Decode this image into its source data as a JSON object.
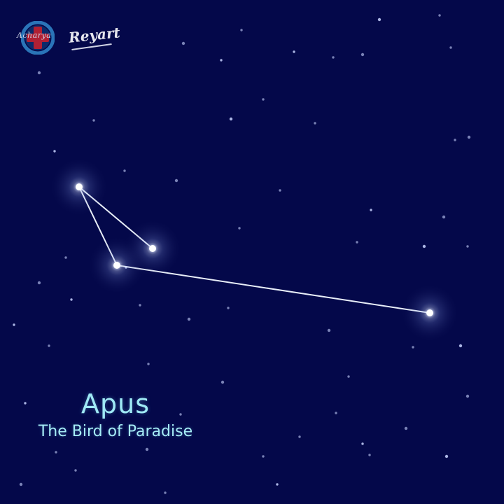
{
  "constellation": {
    "name": "Apus",
    "subtitle": "The Bird of Paradise"
  },
  "logo": {
    "text": "Reyart",
    "badge_text": "Acharya"
  },
  "colors": {
    "sky": "#04084a",
    "label": "#9fe9f5",
    "star": "#ffffff",
    "line": "#e8eef8",
    "logo_ring": "#2a74b8",
    "logo_cross": "#b02034"
  }
}
